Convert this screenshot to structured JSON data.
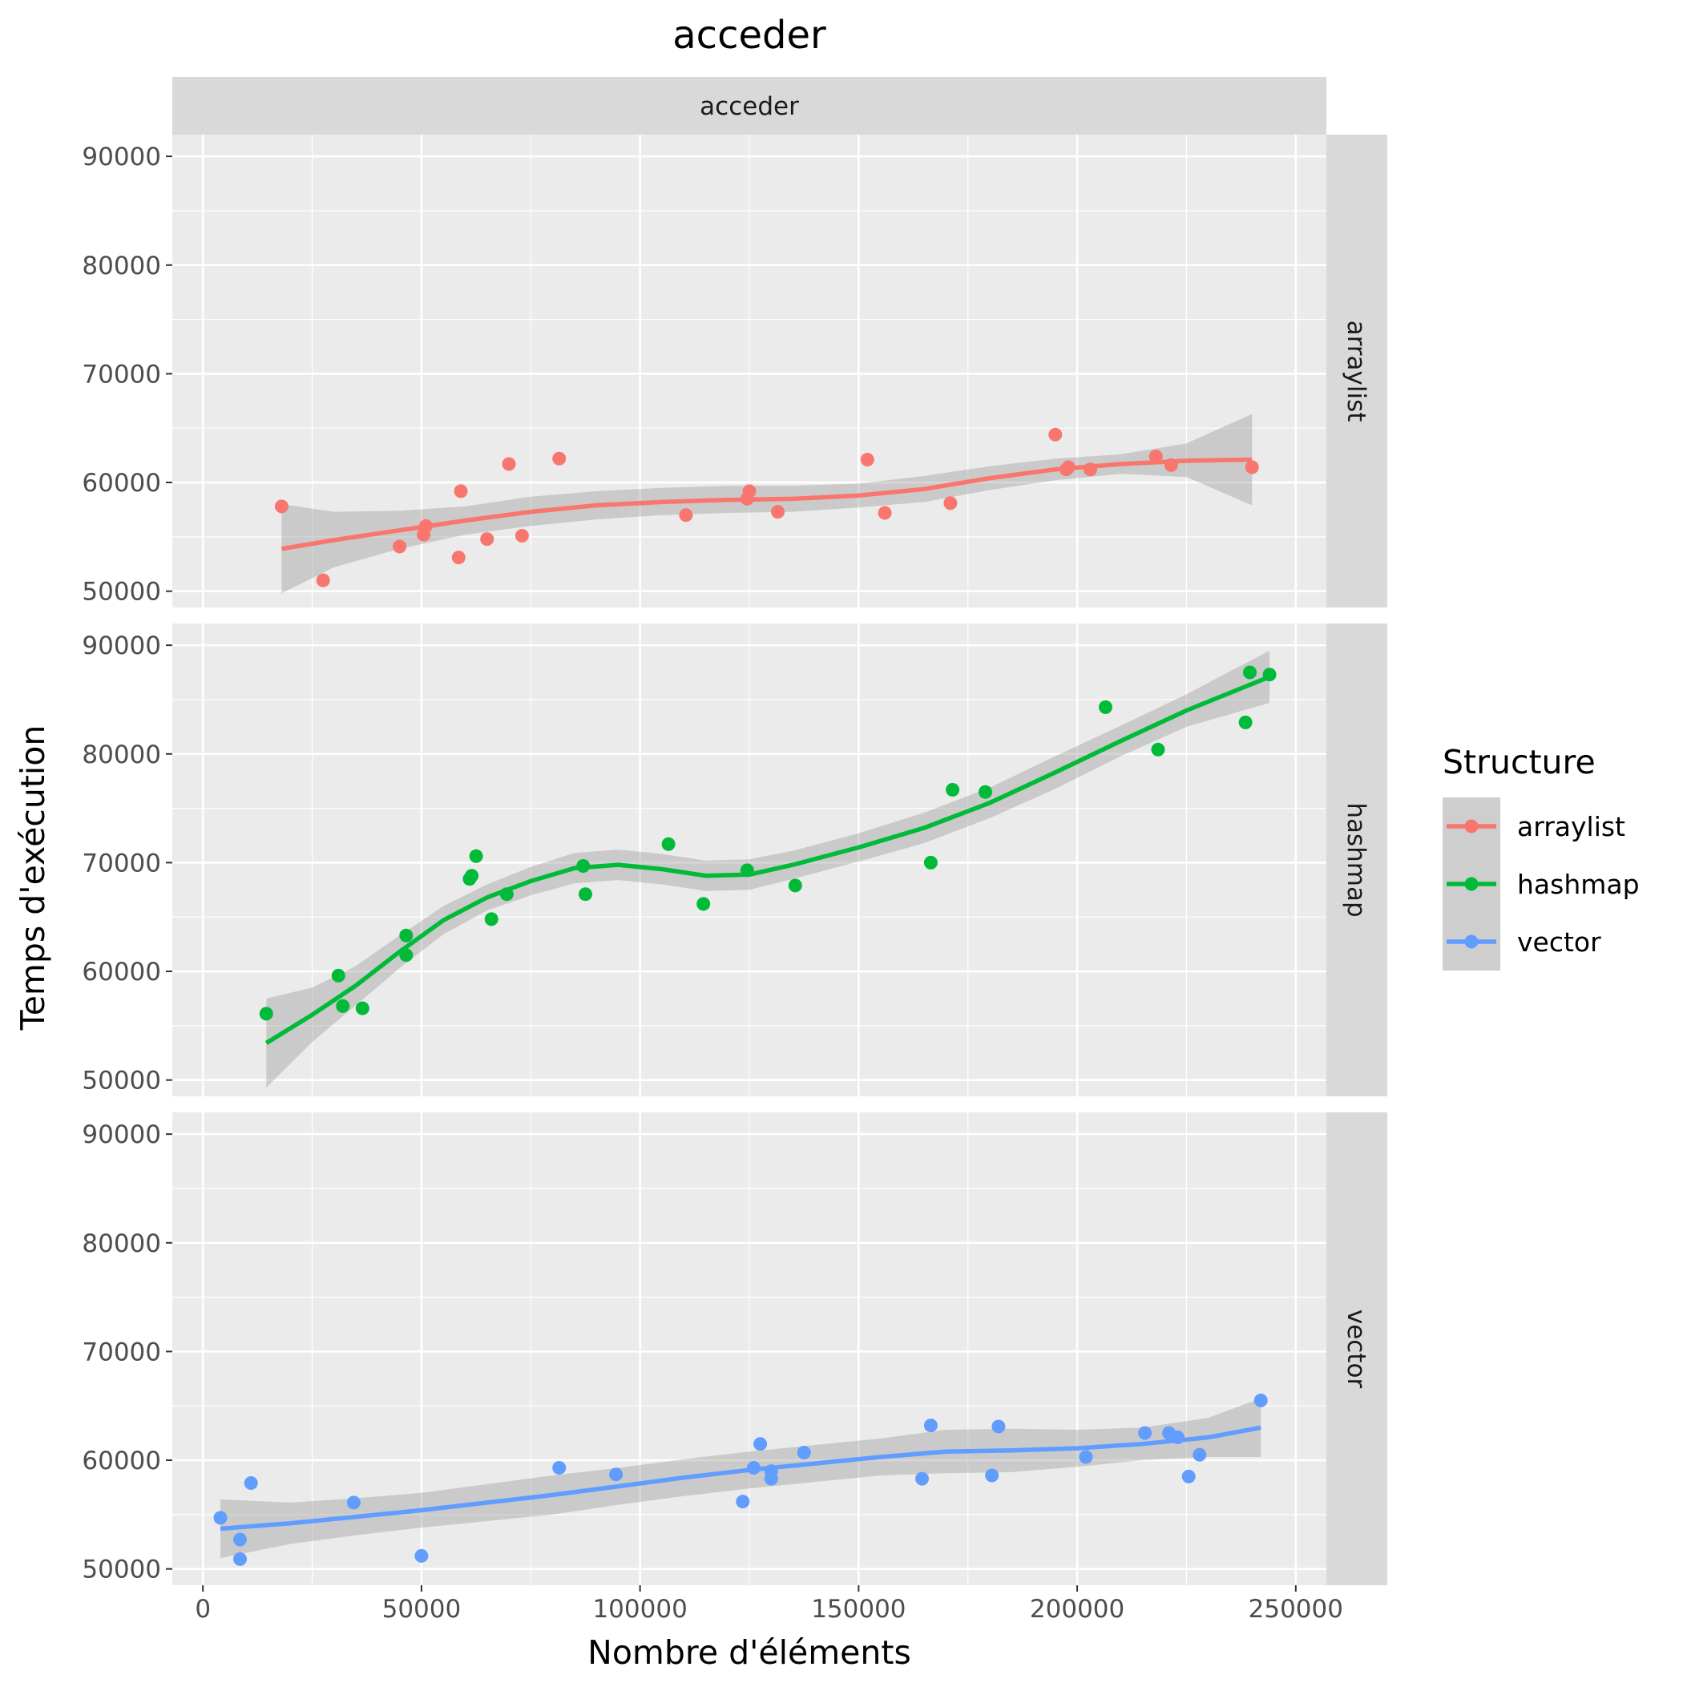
{
  "chart_data": {
    "type": "scatter",
    "title": "acceder",
    "xlabel": "Nombre d'éléments",
    "ylabel": "Temps d'exécution",
    "column_strip": "acceder",
    "xlim": [
      -7000,
      257000
    ],
    "ylim": [
      48500,
      92000
    ],
    "x_ticks": [
      0,
      50000,
      100000,
      150000,
      200000,
      250000
    ],
    "x_tick_labels": [
      "0",
      "50000",
      "100000",
      "150000",
      "200000",
      "250000"
    ],
    "y_ticks": [
      50000,
      60000,
      70000,
      80000,
      90000
    ],
    "y_tick_labels": [
      "50000",
      "60000",
      "70000",
      "80000",
      "90000"
    ],
    "grid": true,
    "legend": {
      "title": "Structure",
      "position": "right"
    },
    "series": [
      {
        "name": "arraylist",
        "color": "#F8766D",
        "points": [
          [
            18000,
            57800
          ],
          [
            27500,
            51000
          ],
          [
            45000,
            54100
          ],
          [
            50500,
            55200
          ],
          [
            51000,
            56000
          ],
          [
            58500,
            53100
          ],
          [
            59000,
            59200
          ],
          [
            65000,
            54800
          ],
          [
            70000,
            61700
          ],
          [
            73000,
            55100
          ],
          [
            81500,
            62200
          ],
          [
            110500,
            57000
          ],
          [
            124500,
            58500
          ],
          [
            125000,
            59200
          ],
          [
            131500,
            57300
          ],
          [
            152000,
            62100
          ],
          [
            156000,
            57200
          ],
          [
            171000,
            58100
          ],
          [
            195000,
            64400
          ],
          [
            197500,
            61200
          ],
          [
            198000,
            61400
          ],
          [
            203000,
            61200
          ],
          [
            218000,
            62400
          ],
          [
            221500,
            61600
          ],
          [
            240000,
            61400
          ]
        ],
        "fit": [
          [
            18000,
            53900
          ],
          [
            30000,
            54700
          ],
          [
            45000,
            55600
          ],
          [
            60000,
            56500
          ],
          [
            75000,
            57300
          ],
          [
            90000,
            57900
          ],
          [
            105000,
            58200
          ],
          [
            120000,
            58400
          ],
          [
            135000,
            58500
          ],
          [
            150000,
            58800
          ],
          [
            165000,
            59400
          ],
          [
            180000,
            60400
          ],
          [
            195000,
            61200
          ],
          [
            210000,
            61700
          ],
          [
            225000,
            62000
          ],
          [
            240000,
            62100
          ]
        ],
        "band_upper": [
          [
            18000,
            58000
          ],
          [
            30000,
            57300
          ],
          [
            45000,
            57400
          ],
          [
            60000,
            57800
          ],
          [
            75000,
            58700
          ],
          [
            90000,
            59200
          ],
          [
            105000,
            59500
          ],
          [
            120000,
            59700
          ],
          [
            135000,
            59700
          ],
          [
            150000,
            59900
          ],
          [
            165000,
            60600
          ],
          [
            180000,
            61500
          ],
          [
            195000,
            62200
          ],
          [
            210000,
            62600
          ],
          [
            225000,
            63600
          ],
          [
            240000,
            66300
          ]
        ],
        "band_lower": [
          [
            18000,
            49800
          ],
          [
            30000,
            52200
          ],
          [
            45000,
            53900
          ],
          [
            60000,
            55200
          ],
          [
            75000,
            56000
          ],
          [
            90000,
            56600
          ],
          [
            105000,
            57000
          ],
          [
            120000,
            57200
          ],
          [
            135000,
            57300
          ],
          [
            150000,
            57700
          ],
          [
            165000,
            58200
          ],
          [
            180000,
            59300
          ],
          [
            195000,
            60200
          ],
          [
            210000,
            60800
          ],
          [
            225000,
            60500
          ],
          [
            240000,
            57900
          ]
        ]
      },
      {
        "name": "hashmap",
        "color": "#00BA38",
        "points": [
          [
            14500,
            56100
          ],
          [
            31000,
            59600
          ],
          [
            32000,
            56800
          ],
          [
            36500,
            56600
          ],
          [
            46500,
            61500
          ],
          [
            46500,
            63300
          ],
          [
            61000,
            68500
          ],
          [
            61500,
            68800
          ],
          [
            62500,
            70600
          ],
          [
            66000,
            64800
          ],
          [
            69500,
            67100
          ],
          [
            87000,
            69700
          ],
          [
            87500,
            67100
          ],
          [
            106500,
            71700
          ],
          [
            114500,
            66200
          ],
          [
            124500,
            69300
          ],
          [
            135500,
            67900
          ],
          [
            166500,
            70000
          ],
          [
            171500,
            76700
          ],
          [
            179000,
            76500
          ],
          [
            206500,
            84300
          ],
          [
            218500,
            80400
          ],
          [
            238500,
            82900
          ],
          [
            239500,
            87500
          ],
          [
            244000,
            87300
          ]
        ],
        "fit": [
          [
            14500,
            53400
          ],
          [
            25000,
            56000
          ],
          [
            35000,
            58700
          ],
          [
            45000,
            61800
          ],
          [
            55000,
            64700
          ],
          [
            65000,
            66800
          ],
          [
            75000,
            68300
          ],
          [
            85000,
            69500
          ],
          [
            95000,
            69800
          ],
          [
            105000,
            69400
          ],
          [
            115000,
            68800
          ],
          [
            125000,
            68900
          ],
          [
            135000,
            69800
          ],
          [
            150000,
            71400
          ],
          [
            165000,
            73200
          ],
          [
            180000,
            75500
          ],
          [
            195000,
            78300
          ],
          [
            210000,
            81200
          ],
          [
            225000,
            84000
          ],
          [
            244000,
            87100
          ]
        ],
        "band_upper": [
          [
            14500,
            57500
          ],
          [
            25000,
            58500
          ],
          [
            35000,
            60500
          ],
          [
            45000,
            63300
          ],
          [
            55000,
            66000
          ],
          [
            65000,
            68000
          ],
          [
            75000,
            69600
          ],
          [
            85000,
            70900
          ],
          [
            95000,
            71200
          ],
          [
            105000,
            70800
          ],
          [
            115000,
            70200
          ],
          [
            125000,
            70300
          ],
          [
            135000,
            71100
          ],
          [
            150000,
            72700
          ],
          [
            165000,
            74600
          ],
          [
            180000,
            76900
          ],
          [
            195000,
            79800
          ],
          [
            210000,
            82600
          ],
          [
            225000,
            85500
          ],
          [
            244000,
            89500
          ]
        ],
        "band_lower": [
          [
            14500,
            49300
          ],
          [
            25000,
            53500
          ],
          [
            35000,
            56900
          ],
          [
            45000,
            60300
          ],
          [
            55000,
            63400
          ],
          [
            65000,
            65600
          ],
          [
            75000,
            67000
          ],
          [
            85000,
            68100
          ],
          [
            95000,
            68400
          ],
          [
            105000,
            68000
          ],
          [
            115000,
            67400
          ],
          [
            125000,
            67500
          ],
          [
            135000,
            68500
          ],
          [
            150000,
            70100
          ],
          [
            165000,
            71800
          ],
          [
            180000,
            74100
          ],
          [
            195000,
            76800
          ],
          [
            210000,
            79800
          ],
          [
            225000,
            82500
          ],
          [
            244000,
            84700
          ]
        ]
      },
      {
        "name": "vector",
        "color": "#619CFF",
        "points": [
          [
            4000,
            54700
          ],
          [
            8500,
            52700
          ],
          [
            8500,
            50900
          ],
          [
            11000,
            57900
          ],
          [
            34500,
            56100
          ],
          [
            50000,
            51200
          ],
          [
            81500,
            59300
          ],
          [
            94500,
            58700
          ],
          [
            123500,
            56200
          ],
          [
            126000,
            59300
          ],
          [
            127500,
            61500
          ],
          [
            130000,
            59000
          ],
          [
            130000,
            58300
          ],
          [
            137500,
            60700
          ],
          [
            164500,
            58300
          ],
          [
            166500,
            63200
          ],
          [
            180500,
            58600
          ],
          [
            182000,
            63100
          ],
          [
            202000,
            60300
          ],
          [
            215500,
            62500
          ],
          [
            221000,
            62500
          ],
          [
            223000,
            62100
          ],
          [
            225500,
            58500
          ],
          [
            228000,
            60500
          ],
          [
            242000,
            65500
          ]
        ],
        "fit": [
          [
            4000,
            53700
          ],
          [
            20000,
            54200
          ],
          [
            35000,
            54800
          ],
          [
            50000,
            55400
          ],
          [
            65000,
            56100
          ],
          [
            80000,
            56800
          ],
          [
            95000,
            57600
          ],
          [
            110000,
            58400
          ],
          [
            125000,
            59100
          ],
          [
            140000,
            59700
          ],
          [
            155000,
            60300
          ],
          [
            170000,
            60800
          ],
          [
            185000,
            60900
          ],
          [
            200000,
            61100
          ],
          [
            215000,
            61500
          ],
          [
            230000,
            62100
          ],
          [
            242000,
            63000
          ]
        ],
        "band_upper": [
          [
            4000,
            56400
          ],
          [
            20000,
            56100
          ],
          [
            35000,
            56500
          ],
          [
            50000,
            57000
          ],
          [
            65000,
            57800
          ],
          [
            80000,
            58600
          ],
          [
            95000,
            59300
          ],
          [
            110000,
            60100
          ],
          [
            125000,
            60800
          ],
          [
            140000,
            61400
          ],
          [
            155000,
            62000
          ],
          [
            170000,
            62800
          ],
          [
            185000,
            62900
          ],
          [
            200000,
            62800
          ],
          [
            215000,
            63000
          ],
          [
            230000,
            63900
          ],
          [
            242000,
            65700
          ]
        ],
        "band_lower": [
          [
            4000,
            51000
          ],
          [
            20000,
            52300
          ],
          [
            35000,
            53100
          ],
          [
            50000,
            53800
          ],
          [
            65000,
            54400
          ],
          [
            80000,
            55000
          ],
          [
            95000,
            55900
          ],
          [
            110000,
            56700
          ],
          [
            125000,
            57400
          ],
          [
            140000,
            58000
          ],
          [
            155000,
            58600
          ],
          [
            170000,
            58800
          ],
          [
            185000,
            58900
          ],
          [
            200000,
            59400
          ],
          [
            215000,
            60000
          ],
          [
            230000,
            60300
          ],
          [
            242000,
            60300
          ]
        ]
      }
    ]
  }
}
